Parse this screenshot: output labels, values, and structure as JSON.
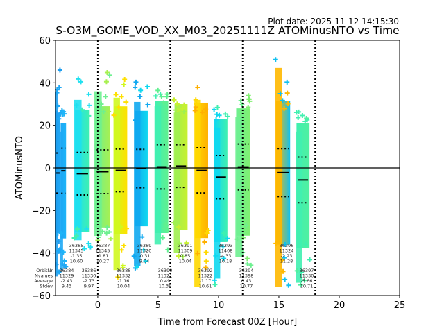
{
  "chart_data": {
    "type": "scatter",
    "title": "S-O3M_GOME_VOD_XX_M03_20251111Z ATOMinusNTO vs Time",
    "subtitle": "Plot date: 2025-11-12 14:15:30",
    "xlabel": "Time from Forecast 00Z [Hour]",
    "ylabel": "ATOMinusNTO",
    "xlim": [
      -3.5,
      25
    ],
    "ylim": [
      -60,
      60
    ],
    "xticks": [
      0,
      5,
      10,
      15,
      20,
      25
    ],
    "yticks": [
      -60,
      -40,
      -20,
      0,
      20,
      40,
      60
    ],
    "xtick_labels": [
      "0",
      "5",
      "10",
      "15",
      "20",
      "25"
    ],
    "ytick_labels": [
      "−60",
      "−40",
      "−20",
      "0",
      "20",
      "40",
      "60"
    ],
    "vertical_dotted_lines": [
      0,
      6,
      12,
      18
    ],
    "horizontal_line": 0,
    "marker": "plus",
    "legend_labels": [
      "OrbitNr",
      "Nvalues",
      "Average",
      "Stdev"
    ],
    "orbits": [
      {
        "orbit": "36384",
        "nvalues": "11329",
        "average": "-2.43",
        "stdev": "9.43",
        "x_range": [
          -3.5,
          -3.1
        ],
        "y_top": 46,
        "y_bottom": -55,
        "colors": [
          "#1e9ef0",
          "#1ea8f5"
        ]
      },
      {
        "orbit": "36385",
        "nvalues": "11345",
        "average": "-1.35",
        "stdev": "10.60",
        "x_range": [
          -3.1,
          -2.6
        ],
        "y_top": 27,
        "y_bottom": -52,
        "colors": [
          "#1ea8f5",
          "#1eb4f8"
        ]
      },
      {
        "orbit": "36386",
        "nvalues": "11330",
        "average": "-2.73",
        "stdev": "9.97",
        "x_range": [
          -1.95,
          -0.6
        ],
        "y_top": 42,
        "y_bottom": -38,
        "colors": [
          "#1ee0f0",
          "#40f0b0"
        ]
      },
      {
        "orbit": "36387",
        "nvalues": "11345",
        "average": "-1.81",
        "stdev": "10.27",
        "x_range": [
          -0.3,
          1.1
        ],
        "y_top": 46,
        "y_bottom": -36,
        "colors": [
          "#6ef090",
          "#a8f050"
        ]
      },
      {
        "orbit": "36388",
        "nvalues": "11332",
        "average": "-1.16",
        "stdev": "10.04",
        "x_range": [
          1.3,
          2.5
        ],
        "y_top": 43,
        "y_bottom": -52,
        "colors": [
          "#d0f820",
          "#ffe000"
        ]
      },
      {
        "orbit": "36389",
        "nvalues": "11320",
        "average": "-0.31",
        "stdev": "9.04",
        "x_range": [
          3.0,
          4.2
        ],
        "y_top": 41,
        "y_bottom": -50,
        "colors": [
          "#10a8f0",
          "#10d8f0"
        ]
      },
      {
        "orbit": "36390",
        "nvalues": "11321",
        "average": "0.49",
        "stdev": "10.38",
        "x_range": [
          4.7,
          5.9
        ],
        "y_top": 39,
        "y_bottom": -40,
        "colors": [
          "#40f0b0",
          "#60f090"
        ]
      },
      {
        "orbit": "36391",
        "nvalues": "11309",
        "average": "0.85",
        "stdev": "10.04",
        "x_range": [
          6.3,
          7.5
        ],
        "y_top": 36,
        "y_bottom": -44,
        "colors": [
          "#a0f050",
          "#c8f030"
        ]
      },
      {
        "orbit": "36392",
        "nvalues": "11322",
        "average": "-1.17",
        "stdev": "10.61",
        "x_range": [
          8.0,
          9.2
        ],
        "y_top": 42,
        "y_bottom": -60,
        "colors": [
          "#ffd800",
          "#ffb000"
        ]
      },
      {
        "orbit": "36393",
        "nvalues": "11408",
        "average": "-4.33",
        "stdev": "10.18",
        "x_range": [
          9.6,
          10.8
        ],
        "y_top": 29,
        "y_bottom": -56,
        "colors": [
          "#10d8f0",
          "#40f0b0"
        ]
      },
      {
        "orbit": "36394",
        "nvalues": "11398",
        "average": "0.43",
        "stdev": "10.77",
        "x_range": [
          11.4,
          12.7
        ],
        "y_top": 34,
        "y_bottom": -46,
        "colors": [
          "#6ef090",
          "#80f070"
        ]
      },
      {
        "orbit": "36396",
        "nvalues": "11324",
        "average": "-2.23",
        "stdev": "11.28",
        "x_range": [
          14.7,
          16.0
        ],
        "y_top": 57,
        "y_bottom": -60,
        "colors": [
          "#ffb800",
          "#10c0f0"
        ]
      },
      {
        "orbit": "36397",
        "nvalues": "11330",
        "average": "-5.66",
        "stdev": "10.71",
        "x_range": [
          16.4,
          17.6
        ],
        "y_top": 27,
        "y_bottom": -58,
        "colors": [
          "#40f0b0",
          "#50f0a0"
        ]
      }
    ]
  }
}
